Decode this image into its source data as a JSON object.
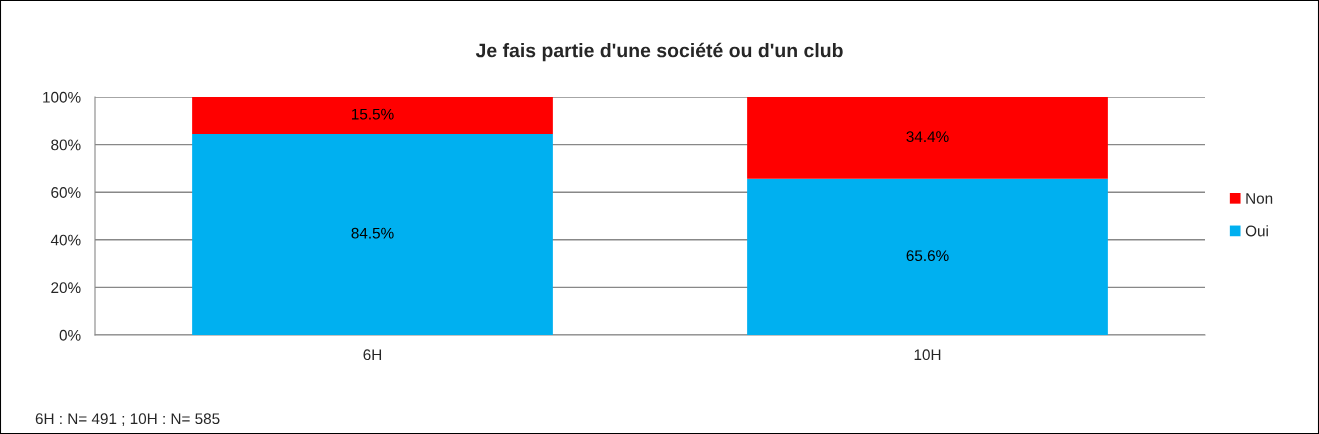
{
  "chart_data": {
    "type": "bar",
    "title": "Je fais partie d'une société ou d'un club",
    "categories": [
      "6H",
      "10H"
    ],
    "stacked": true,
    "series": [
      {
        "name": "Oui",
        "color": "#00b0f0",
        "values": [
          84.5,
          65.6
        ],
        "value_labels": [
          "84.5%",
          "65.6%"
        ]
      },
      {
        "name": "Non",
        "color": "#ff0000",
        "values": [
          15.5,
          34.4
        ],
        "value_labels": [
          "15.5%",
          "34.4%"
        ]
      }
    ],
    "ylim": [
      0,
      100
    ],
    "yticks": [
      {
        "value": 0,
        "label": "0%"
      },
      {
        "value": 20,
        "label": "20%"
      },
      {
        "value": 40,
        "label": "40%"
      },
      {
        "value": 60,
        "label": "60%"
      },
      {
        "value": 80,
        "label": "80%"
      },
      {
        "value": 100,
        "label": "100%"
      }
    ],
    "grid": "y",
    "legend": "right",
    "annotations": [
      "6H : N= 491 ; 10H : N= 585"
    ]
  }
}
